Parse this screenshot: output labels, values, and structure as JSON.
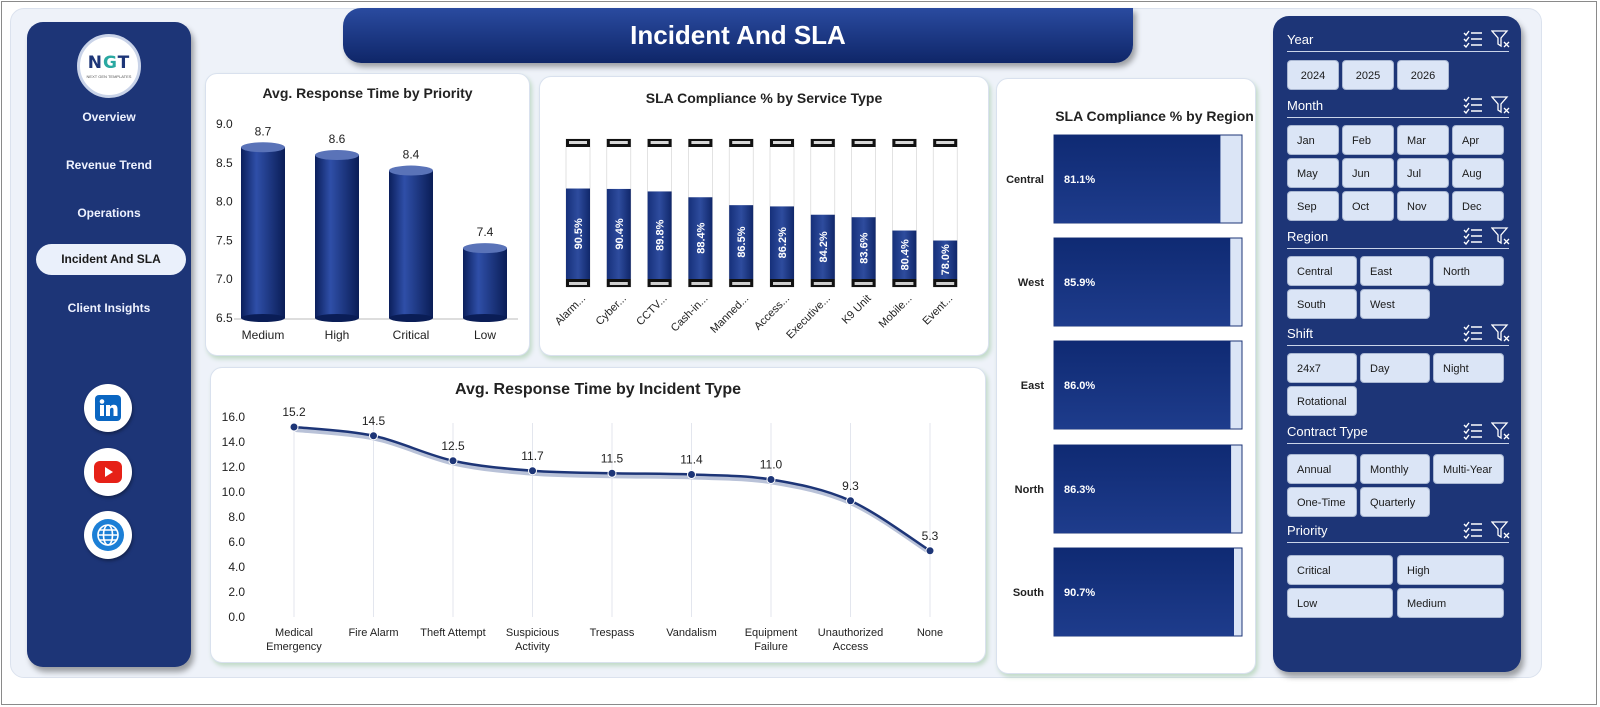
{
  "title": "Incident And SLA",
  "logo": {
    "text": "NGT",
    "subtext": "NEXT GEN TEMPLATES"
  },
  "nav": [
    {
      "label": "Overview",
      "active": false
    },
    {
      "label": "Revenue Trend",
      "active": false
    },
    {
      "label": "Operations",
      "active": false
    },
    {
      "label": "Incident And SLA",
      "active": true
    },
    {
      "label": "Client Insights",
      "active": false
    }
  ],
  "social": [
    {
      "icon": "linkedin-icon",
      "color": "#0a66c2"
    },
    {
      "icon": "youtube-icon",
      "color": "#e62117"
    },
    {
      "icon": "globe-icon",
      "color": "#1c7fd6"
    }
  ],
  "colors": {
    "navy": "#1d3577",
    "bar": "#0f2a73",
    "panel_bg": "#eef2f9",
    "slicer_btn": "#dbe5f6"
  },
  "charts": {
    "priority": {
      "title": "Avg. Response Time by Priority",
      "chart_data": {
        "type": "bar",
        "categories": [
          "Medium",
          "High",
          "Critical",
          "Low"
        ],
        "values": [
          8.7,
          8.6,
          8.4,
          7.4
        ],
        "data_labels": [
          "8.7",
          "8.6",
          "8.4",
          "7.4"
        ],
        "ylim": [
          6.5,
          9.0
        ],
        "yticks": [
          "9.0",
          "8.5",
          "8.0",
          "7.5",
          "7.0",
          "6.5"
        ],
        "grid": false
      }
    },
    "service": {
      "title": "SLA Compliance % by Service Type",
      "chart_data": {
        "type": "bar",
        "categories": [
          "Alarm...",
          "Cyber...",
          "CCTV...",
          "Cash-in...",
          "Manned...",
          "Access...",
          "Executive...",
          "K9 Unit",
          "Mobile...",
          "Event..."
        ],
        "values": [
          90.5,
          90.4,
          89.8,
          88.4,
          86.5,
          86.2,
          84.2,
          83.6,
          80.4,
          78.0
        ],
        "data_labels": [
          "90.5%",
          "90.4%",
          "89.8%",
          "88.4%",
          "86.5%",
          "86.2%",
          "84.2%",
          "83.6%",
          "80.4%",
          "78.0%"
        ],
        "ylim": [
          0,
          100
        ],
        "grid": false
      }
    },
    "region": {
      "title": "SLA Compliance % by Region",
      "chart_data": {
        "type": "bar",
        "orientation": "horizontal",
        "categories": [
          "Central",
          "West",
          "East",
          "North",
          "South"
        ],
        "values": [
          81.1,
          85.9,
          86.0,
          86.3,
          90.7
        ],
        "data_labels": [
          "81.1%",
          "85.9%",
          "86.0%",
          "86.3%",
          "90.7%"
        ],
        "xlim": [
          0,
          100
        ],
        "grid": false
      }
    },
    "incident": {
      "title": "Avg. Response Time by Incident Type",
      "chart_data": {
        "type": "line",
        "categories": [
          "Medical Emergency",
          "Fire Alarm",
          "Theft Attempt",
          "Suspicious Activity",
          "Trespass",
          "Vandalism",
          "Equipment Failure",
          "Unauthorized Access",
          "None"
        ],
        "category_lines": [
          [
            "Medical",
            "Emergency"
          ],
          [
            "Fire Alarm"
          ],
          [
            "Theft Attempt"
          ],
          [
            "Suspicious",
            "Activity"
          ],
          [
            "Trespass"
          ],
          [
            "Vandalism"
          ],
          [
            "Equipment",
            "Failure"
          ],
          [
            "Unauthorized",
            "Access"
          ],
          [
            "None"
          ]
        ],
        "values": [
          15.2,
          14.5,
          12.5,
          11.7,
          11.5,
          11.4,
          11.0,
          9.3,
          5.3
        ],
        "data_labels": [
          "15.2",
          "14.5",
          "12.5",
          "11.7",
          "11.5",
          "11.4",
          "11.0",
          "9.3",
          "5.3"
        ],
        "ylim": [
          0,
          16
        ],
        "yticks": [
          "16.0",
          "14.0",
          "12.0",
          "10.0",
          "8.0",
          "6.0",
          "4.0",
          "2.0",
          "0.0"
        ],
        "grid": false
      }
    }
  },
  "slicers": {
    "year": {
      "label": "Year",
      "options": [
        "2024",
        "2025",
        "2026"
      ]
    },
    "month": {
      "label": "Month",
      "options": [
        "Jan",
        "Feb",
        "Mar",
        "Apr",
        "May",
        "Jun",
        "Jul",
        "Aug",
        "Sep",
        "Oct",
        "Nov",
        "Dec"
      ]
    },
    "region": {
      "label": "Region",
      "options": [
        "Central",
        "East",
        "North",
        "South",
        "West"
      ]
    },
    "shift": {
      "label": "Shift",
      "options": [
        "24x7",
        "Day",
        "Night",
        "Rotational"
      ]
    },
    "contract": {
      "label": "Contract Type",
      "options": [
        "Annual",
        "Monthly",
        "Multi-Year",
        "One-Time",
        "Quarterly"
      ]
    },
    "priority": {
      "label": "Priority",
      "options": [
        "Critical",
        "High",
        "Low",
        "Medium"
      ]
    }
  }
}
